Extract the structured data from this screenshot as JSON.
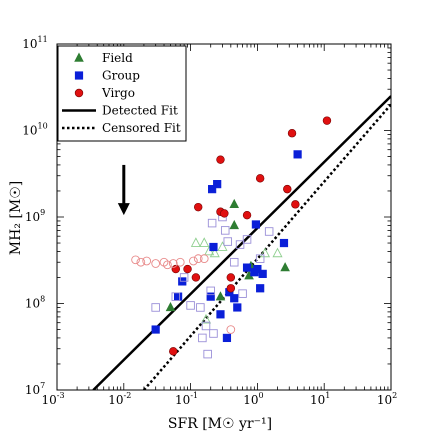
{
  "chart_data": {
    "type": "scatter",
    "xlabel": "SFR [M☉ yr⁻¹]",
    "ylabel": "MH₂ [M☉]",
    "x_scale": "log",
    "y_scale": "log",
    "xlim": [
      0.001,
      100
    ],
    "ylim": [
      10000000,
      100000000000
    ],
    "x_ticks": [
      {
        "value": 0.001,
        "base": "10",
        "exp": "-3"
      },
      {
        "value": 0.01,
        "base": "10",
        "exp": "-2"
      },
      {
        "value": 0.1,
        "base": "10",
        "exp": "-1"
      },
      {
        "value": 1,
        "base": "10",
        "exp": "0"
      },
      {
        "value": 10,
        "base": "10",
        "exp": "1"
      },
      {
        "value": 100,
        "base": "10",
        "exp": "2"
      }
    ],
    "y_ticks": [
      {
        "value": 10000000,
        "base": "10",
        "exp": "7"
      },
      {
        "value": 100000000,
        "base": "10",
        "exp": "8"
      },
      {
        "value": 1000000000,
        "base": "10",
        "exp": "9"
      },
      {
        "value": 10000000000,
        "base": "10",
        "exp": "10"
      },
      {
        "value": 100000000000,
        "base": "10",
        "exp": "11"
      }
    ],
    "legend_position": "top-left",
    "legend": [
      "Field",
      "Group",
      "Virgo",
      "Detected Fit",
      "Censored Fit"
    ],
    "colors": {
      "field": "#2e7d32",
      "group": "#0a1fd8",
      "virgo": "#e01010",
      "group_open": "#9a8fd8",
      "virgo_open": "#e88a8a",
      "field_open": "#8fcf8f"
    },
    "series": [
      {
        "name": "Field",
        "marker": "triangle",
        "filled": true,
        "points": [
          [
            0.05,
            90000000
          ],
          [
            0.28,
            120000000
          ],
          [
            0.45,
            1400000000
          ],
          [
            0.45,
            800000000
          ],
          [
            0.75,
            210000000
          ],
          [
            0.8,
            270000000
          ],
          [
            2.6,
            260000000
          ]
        ]
      },
      {
        "name": "Field",
        "marker": "triangle",
        "filled": false,
        "points": [
          [
            0.12,
            500000000
          ],
          [
            0.16,
            500000000
          ],
          [
            0.19,
            400000000
          ],
          [
            0.23,
            380000000
          ],
          [
            0.3,
            450000000
          ],
          [
            0.17,
            65000000
          ],
          [
            1.3,
            380000000
          ],
          [
            2.0,
            380000000
          ]
        ]
      },
      {
        "name": "Group",
        "marker": "square",
        "filled": true,
        "points": [
          [
            0.03,
            50000000
          ],
          [
            0.065,
            120000000
          ],
          [
            0.075,
            180000000
          ],
          [
            0.2,
            120000000
          ],
          [
            0.21,
            2100000000
          ],
          [
            0.25,
            2400000000
          ],
          [
            0.22,
            450000000
          ],
          [
            0.28,
            75000000
          ],
          [
            0.35,
            40000000
          ],
          [
            0.38,
            135000000
          ],
          [
            0.45,
            115000000
          ],
          [
            0.5,
            90000000
          ],
          [
            0.7,
            260000000
          ],
          [
            0.9,
            230000000
          ],
          [
            1.0,
            250000000
          ],
          [
            1.1,
            150000000
          ],
          [
            1.2,
            220000000
          ],
          [
            0.95,
            820000000
          ],
          [
            2.5,
            500000000
          ],
          [
            4.0,
            5300000000
          ]
        ]
      },
      {
        "name": "Group",
        "marker": "square",
        "filled": false,
        "points": [
          [
            0.03,
            90000000
          ],
          [
            0.06,
            120000000
          ],
          [
            0.08,
            200000000
          ],
          [
            0.1,
            95000000
          ],
          [
            0.14,
            90000000
          ],
          [
            0.15,
            40000000
          ],
          [
            0.17,
            55000000
          ],
          [
            0.18,
            26000000
          ],
          [
            0.2,
            140000000
          ],
          [
            0.22,
            45000000
          ],
          [
            0.21,
            850000000
          ],
          [
            0.3,
            1000000000
          ],
          [
            0.33,
            700000000
          ],
          [
            0.36,
            520000000
          ],
          [
            0.45,
            300000000
          ],
          [
            0.55,
            480000000
          ],
          [
            0.6,
            130000000
          ],
          [
            0.7,
            550000000
          ],
          [
            1.1,
            330000000
          ],
          [
            1.5,
            680000000
          ]
        ]
      },
      {
        "name": "Virgo",
        "marker": "circle",
        "filled": true,
        "points": [
          [
            0.055,
            28000000
          ],
          [
            0.06,
            250000000
          ],
          [
            0.09,
            250000000
          ],
          [
            0.12,
            200000000
          ],
          [
            0.13,
            1300000000
          ],
          [
            0.28,
            4600000000
          ],
          [
            0.28,
            1150000000
          ],
          [
            0.32,
            1100000000
          ],
          [
            0.4,
            200000000
          ],
          [
            0.4,
            150000000
          ],
          [
            0.7,
            1050000000
          ],
          [
            1.1,
            2800000000
          ],
          [
            2.8,
            2100000000
          ],
          [
            3.3,
            9300000000
          ],
          [
            3.7,
            1400000000
          ],
          [
            11.0,
            13000000000
          ]
        ]
      },
      {
        "name": "Virgo",
        "marker": "circle",
        "filled": false,
        "points": [
          [
            0.015,
            320000000
          ],
          [
            0.018,
            300000000
          ],
          [
            0.022,
            310000000
          ],
          [
            0.03,
            290000000
          ],
          [
            0.04,
            300000000
          ],
          [
            0.045,
            280000000
          ],
          [
            0.055,
            290000000
          ],
          [
            0.07,
            300000000
          ],
          [
            0.11,
            310000000
          ],
          [
            0.13,
            330000000
          ],
          [
            0.16,
            330000000
          ],
          [
            0.4,
            50000000
          ]
        ]
      }
    ],
    "fits": [
      {
        "name": "Detected Fit",
        "style": "solid",
        "points": [
          [
            0.0035,
            10000000
          ],
          [
            100,
            25000000000
          ]
        ]
      },
      {
        "name": "Censored Fit",
        "style": "dotted",
        "points": [
          [
            0.02,
            10000000
          ],
          [
            100,
            20000000000
          ]
        ]
      }
    ],
    "arrow": {
      "x": 0.01,
      "y_from": 4000000000,
      "y_to": 1050000000
    }
  }
}
